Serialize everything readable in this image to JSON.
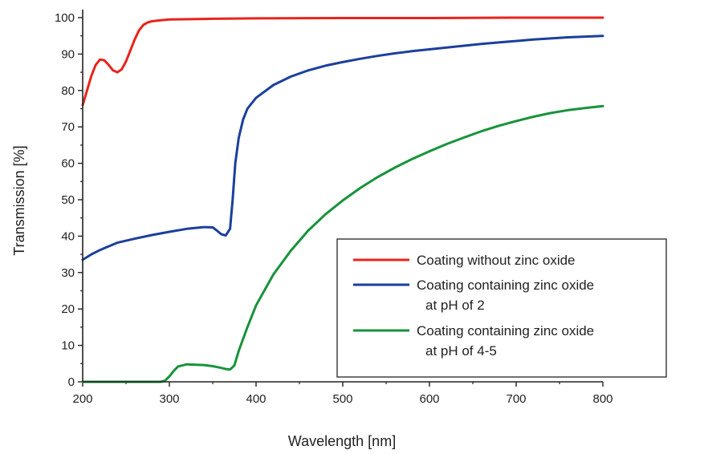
{
  "chart_data": {
    "type": "line",
    "xlabel": "Wavelength [nm]",
    "ylabel": "Transmission [%]",
    "xlim": [
      200,
      800
    ],
    "ylim": [
      0,
      100
    ],
    "xticks": [
      200,
      300,
      400,
      500,
      600,
      700,
      800
    ],
    "yticks": [
      0,
      10,
      20,
      30,
      40,
      50,
      60,
      70,
      80,
      90,
      100
    ],
    "grid": false,
    "legend_position": "bottom-right",
    "series": [
      {
        "name": "Coating without zinc oxide",
        "color": "#e8241c",
        "points": [
          [
            200,
            76
          ],
          [
            205,
            80
          ],
          [
            210,
            84
          ],
          [
            215,
            87
          ],
          [
            220,
            88.5
          ],
          [
            225,
            88.3
          ],
          [
            230,
            87
          ],
          [
            235,
            85.5
          ],
          [
            240,
            85
          ],
          [
            245,
            85.8
          ],
          [
            250,
            88
          ],
          [
            255,
            91
          ],
          [
            260,
            94
          ],
          [
            265,
            96.5
          ],
          [
            270,
            98
          ],
          [
            275,
            98.7
          ],
          [
            280,
            99
          ],
          [
            290,
            99.3
          ],
          [
            300,
            99.5
          ],
          [
            350,
            99.7
          ],
          [
            400,
            99.8
          ],
          [
            500,
            99.9
          ],
          [
            600,
            99.9
          ],
          [
            700,
            100
          ],
          [
            800,
            100
          ]
        ]
      },
      {
        "name": "Coating containing zinc oxide",
        "name_line2": "at pH of 2",
        "color": "#1b3f9c",
        "points": [
          [
            200,
            33.5
          ],
          [
            210,
            35
          ],
          [
            220,
            36.2
          ],
          [
            230,
            37.2
          ],
          [
            240,
            38.2
          ],
          [
            260,
            39.3
          ],
          [
            280,
            40.3
          ],
          [
            300,
            41.2
          ],
          [
            320,
            42
          ],
          [
            340,
            42.5
          ],
          [
            350,
            42.4
          ],
          [
            355,
            41.5
          ],
          [
            360,
            40.5
          ],
          [
            365,
            40.2
          ],
          [
            370,
            42
          ],
          [
            373,
            50
          ],
          [
            376,
            60
          ],
          [
            380,
            67
          ],
          [
            385,
            72
          ],
          [
            390,
            75
          ],
          [
            400,
            78
          ],
          [
            420,
            81.5
          ],
          [
            440,
            83.8
          ],
          [
            460,
            85.5
          ],
          [
            480,
            86.8
          ],
          [
            500,
            87.8
          ],
          [
            520,
            88.7
          ],
          [
            540,
            89.5
          ],
          [
            560,
            90.2
          ],
          [
            580,
            90.8
          ],
          [
            600,
            91.3
          ],
          [
            620,
            91.8
          ],
          [
            640,
            92.3
          ],
          [
            660,
            92.8
          ],
          [
            680,
            93.2
          ],
          [
            700,
            93.6
          ],
          [
            720,
            94
          ],
          [
            740,
            94.3
          ],
          [
            760,
            94.6
          ],
          [
            780,
            94.8
          ],
          [
            800,
            95
          ]
        ]
      },
      {
        "name": "Coating containing zinc oxide",
        "name_line2": "at pH of 4-5",
        "color": "#17933a",
        "points": [
          [
            200,
            0
          ],
          [
            250,
            0
          ],
          [
            290,
            0
          ],
          [
            295,
            0.3
          ],
          [
            300,
            1.5
          ],
          [
            305,
            3
          ],
          [
            310,
            4.2
          ],
          [
            320,
            4.8
          ],
          [
            340,
            4.6
          ],
          [
            350,
            4.3
          ],
          [
            360,
            3.8
          ],
          [
            365,
            3.5
          ],
          [
            370,
            3.4
          ],
          [
            375,
            4.5
          ],
          [
            380,
            8.5
          ],
          [
            390,
            15
          ],
          [
            400,
            21
          ],
          [
            420,
            29.5
          ],
          [
            440,
            36
          ],
          [
            460,
            41.5
          ],
          [
            480,
            46
          ],
          [
            500,
            49.8
          ],
          [
            520,
            53.2
          ],
          [
            540,
            56.2
          ],
          [
            560,
            58.8
          ],
          [
            580,
            61.2
          ],
          [
            600,
            63.3
          ],
          [
            620,
            65.3
          ],
          [
            640,
            67.1
          ],
          [
            660,
            68.8
          ],
          [
            680,
            70.3
          ],
          [
            700,
            71.6
          ],
          [
            720,
            72.8
          ],
          [
            740,
            73.8
          ],
          [
            760,
            74.6
          ],
          [
            780,
            75.2
          ],
          [
            800,
            75.7
          ]
        ]
      }
    ]
  }
}
